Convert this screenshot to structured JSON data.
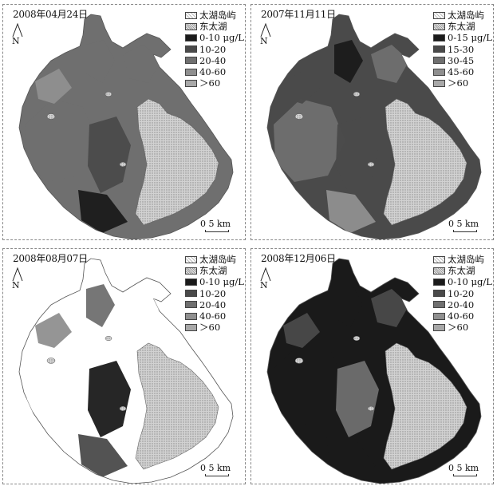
{
  "colors": {
    "island": "#d2d2d2",
    "east_lake": "#c6c6c6",
    "c0": "#1a1a1a",
    "c1": "#4a4a4a",
    "c2": "#6f6f6f",
    "c3": "#8f8f8f",
    "c4": "#a8a8a8",
    "white": "#ffffff"
  },
  "panels": [
    {
      "date": "2008年04月24日",
      "north_label": "N",
      "legend": [
        "太湖岛屿",
        "东太湖",
        "0-10 μg/L",
        "10-20",
        "20-40",
        "40-60",
        "＞60"
      ],
      "scale_label": "0   5 km",
      "dominant_class": 2,
      "patches": [
        2,
        2,
        1,
        2,
        0,
        3
      ]
    },
    {
      "date": "2007年11月11日",
      "north_label": "N",
      "legend": [
        "太湖岛屿",
        "东太湖",
        "0-15 μg/L",
        "15-30",
        "30-45",
        "45-60",
        "＞60"
      ],
      "scale_label": "0   5 km",
      "dominant_class": 1,
      "patches": [
        2,
        0,
        1,
        2,
        3,
        1
      ]
    },
    {
      "date": "2008年08月07日",
      "north_label": "N",
      "legend": [
        "太湖岛屿",
        "东太湖",
        "0-10 μg/L",
        "10-20",
        "20-40",
        "40-60",
        "＞60"
      ],
      "scale_label": "0   5 km",
      "dominant_class": 5,
      "patches": [
        5,
        2,
        0,
        5,
        1,
        3
      ]
    },
    {
      "date": "2008年12月06日",
      "north_label": "N",
      "legend": [
        "太湖岛屿",
        "东太湖",
        "0-10 μg/L",
        "10-20",
        "20-40",
        "40-60",
        "＞60"
      ],
      "scale_label": "0   5 km",
      "dominant_class": 0,
      "patches": [
        0,
        0,
        2,
        1,
        0,
        1
      ]
    }
  ]
}
